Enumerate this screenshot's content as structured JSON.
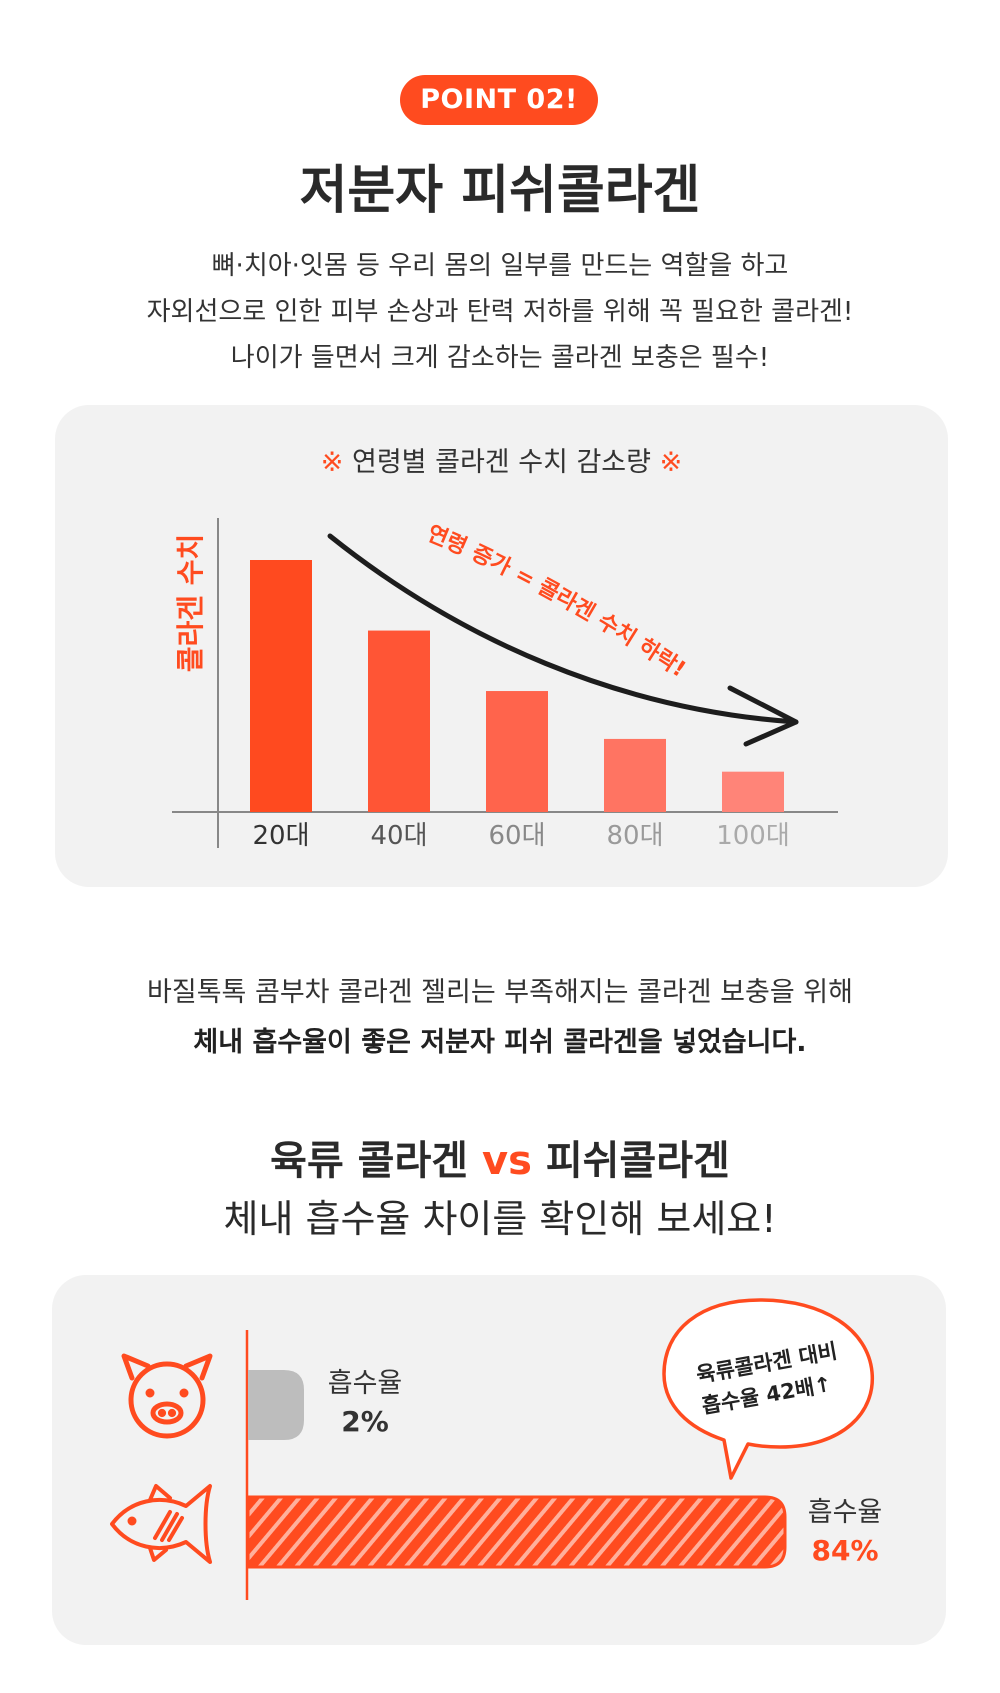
{
  "badge": "POINT 02!",
  "title": "저분자 피쉬콜라겐",
  "intro": [
    "뼈·치아·잇몸 등 우리 몸의 일부를 만드는 역할을 하고",
    "자외선으로 인한 피부 손상과 탄력 저하를 위해 꼭 필요한 콜라겐!",
    "나이가 들면서 크게 감소하는 콜라겐 보충은 필수!"
  ],
  "chart_title": {
    "mark_left": "※",
    "text": "연령별 콜라겐 수치 감소량",
    "mark_right": "※"
  },
  "colors": {
    "accent": "#ff4b1f",
    "box": "#f2f2f2",
    "pork_bar": "#bdbdbd"
  },
  "chart_data": [
    {
      "type": "bar",
      "ylabel": "콜라겐 수치",
      "xlabel": "",
      "categories": [
        "20대",
        "40대",
        "60대",
        "80대",
        "100대"
      ],
      "values": [
        100,
        72,
        48,
        29,
        16
      ],
      "ylim": [
        0,
        115
      ],
      "bar_colors": [
        "#ff4a1f",
        "#ff5535",
        "#ff644c",
        "#ff7462",
        "#ff8478"
      ],
      "tick_colors": [
        "#333333",
        "#555555",
        "#888888",
        "#9a9a9a",
        "#aaaaaa"
      ],
      "annotation": "연령 증가 = 콜라겐 수치 하락!",
      "grid": false
    },
    {
      "type": "bar",
      "orientation": "horizontal",
      "categories": [
        "pig-icon",
        "fish-icon"
      ],
      "series": [
        {
          "values": [
            2,
            84
          ]
        }
      ],
      "labels": [
        {
          "name": "흡수율",
          "value": "2%"
        },
        {
          "name": "흡수율",
          "value": "84%"
        }
      ],
      "xlim": [
        0,
        100
      ],
      "callout": [
        "육류콜라겐 대비",
        "흡수율 42배↑"
      ]
    }
  ],
  "para2": {
    "line1": "바질톡톡 콤부차 콜라겐 젤리는 부족해지는 콜라겐 보충을 위해",
    "line2": "체내 흡수율이 좋은 저분자 피쉬 콜라겐을 넣었습니다."
  },
  "vs_heading": {
    "left": "육류 콜라겐",
    "vs": "vs",
    "right": "피쉬콜라겐"
  },
  "vs_sub": "체내 흡수율 차이를 확인해 보세요!"
}
